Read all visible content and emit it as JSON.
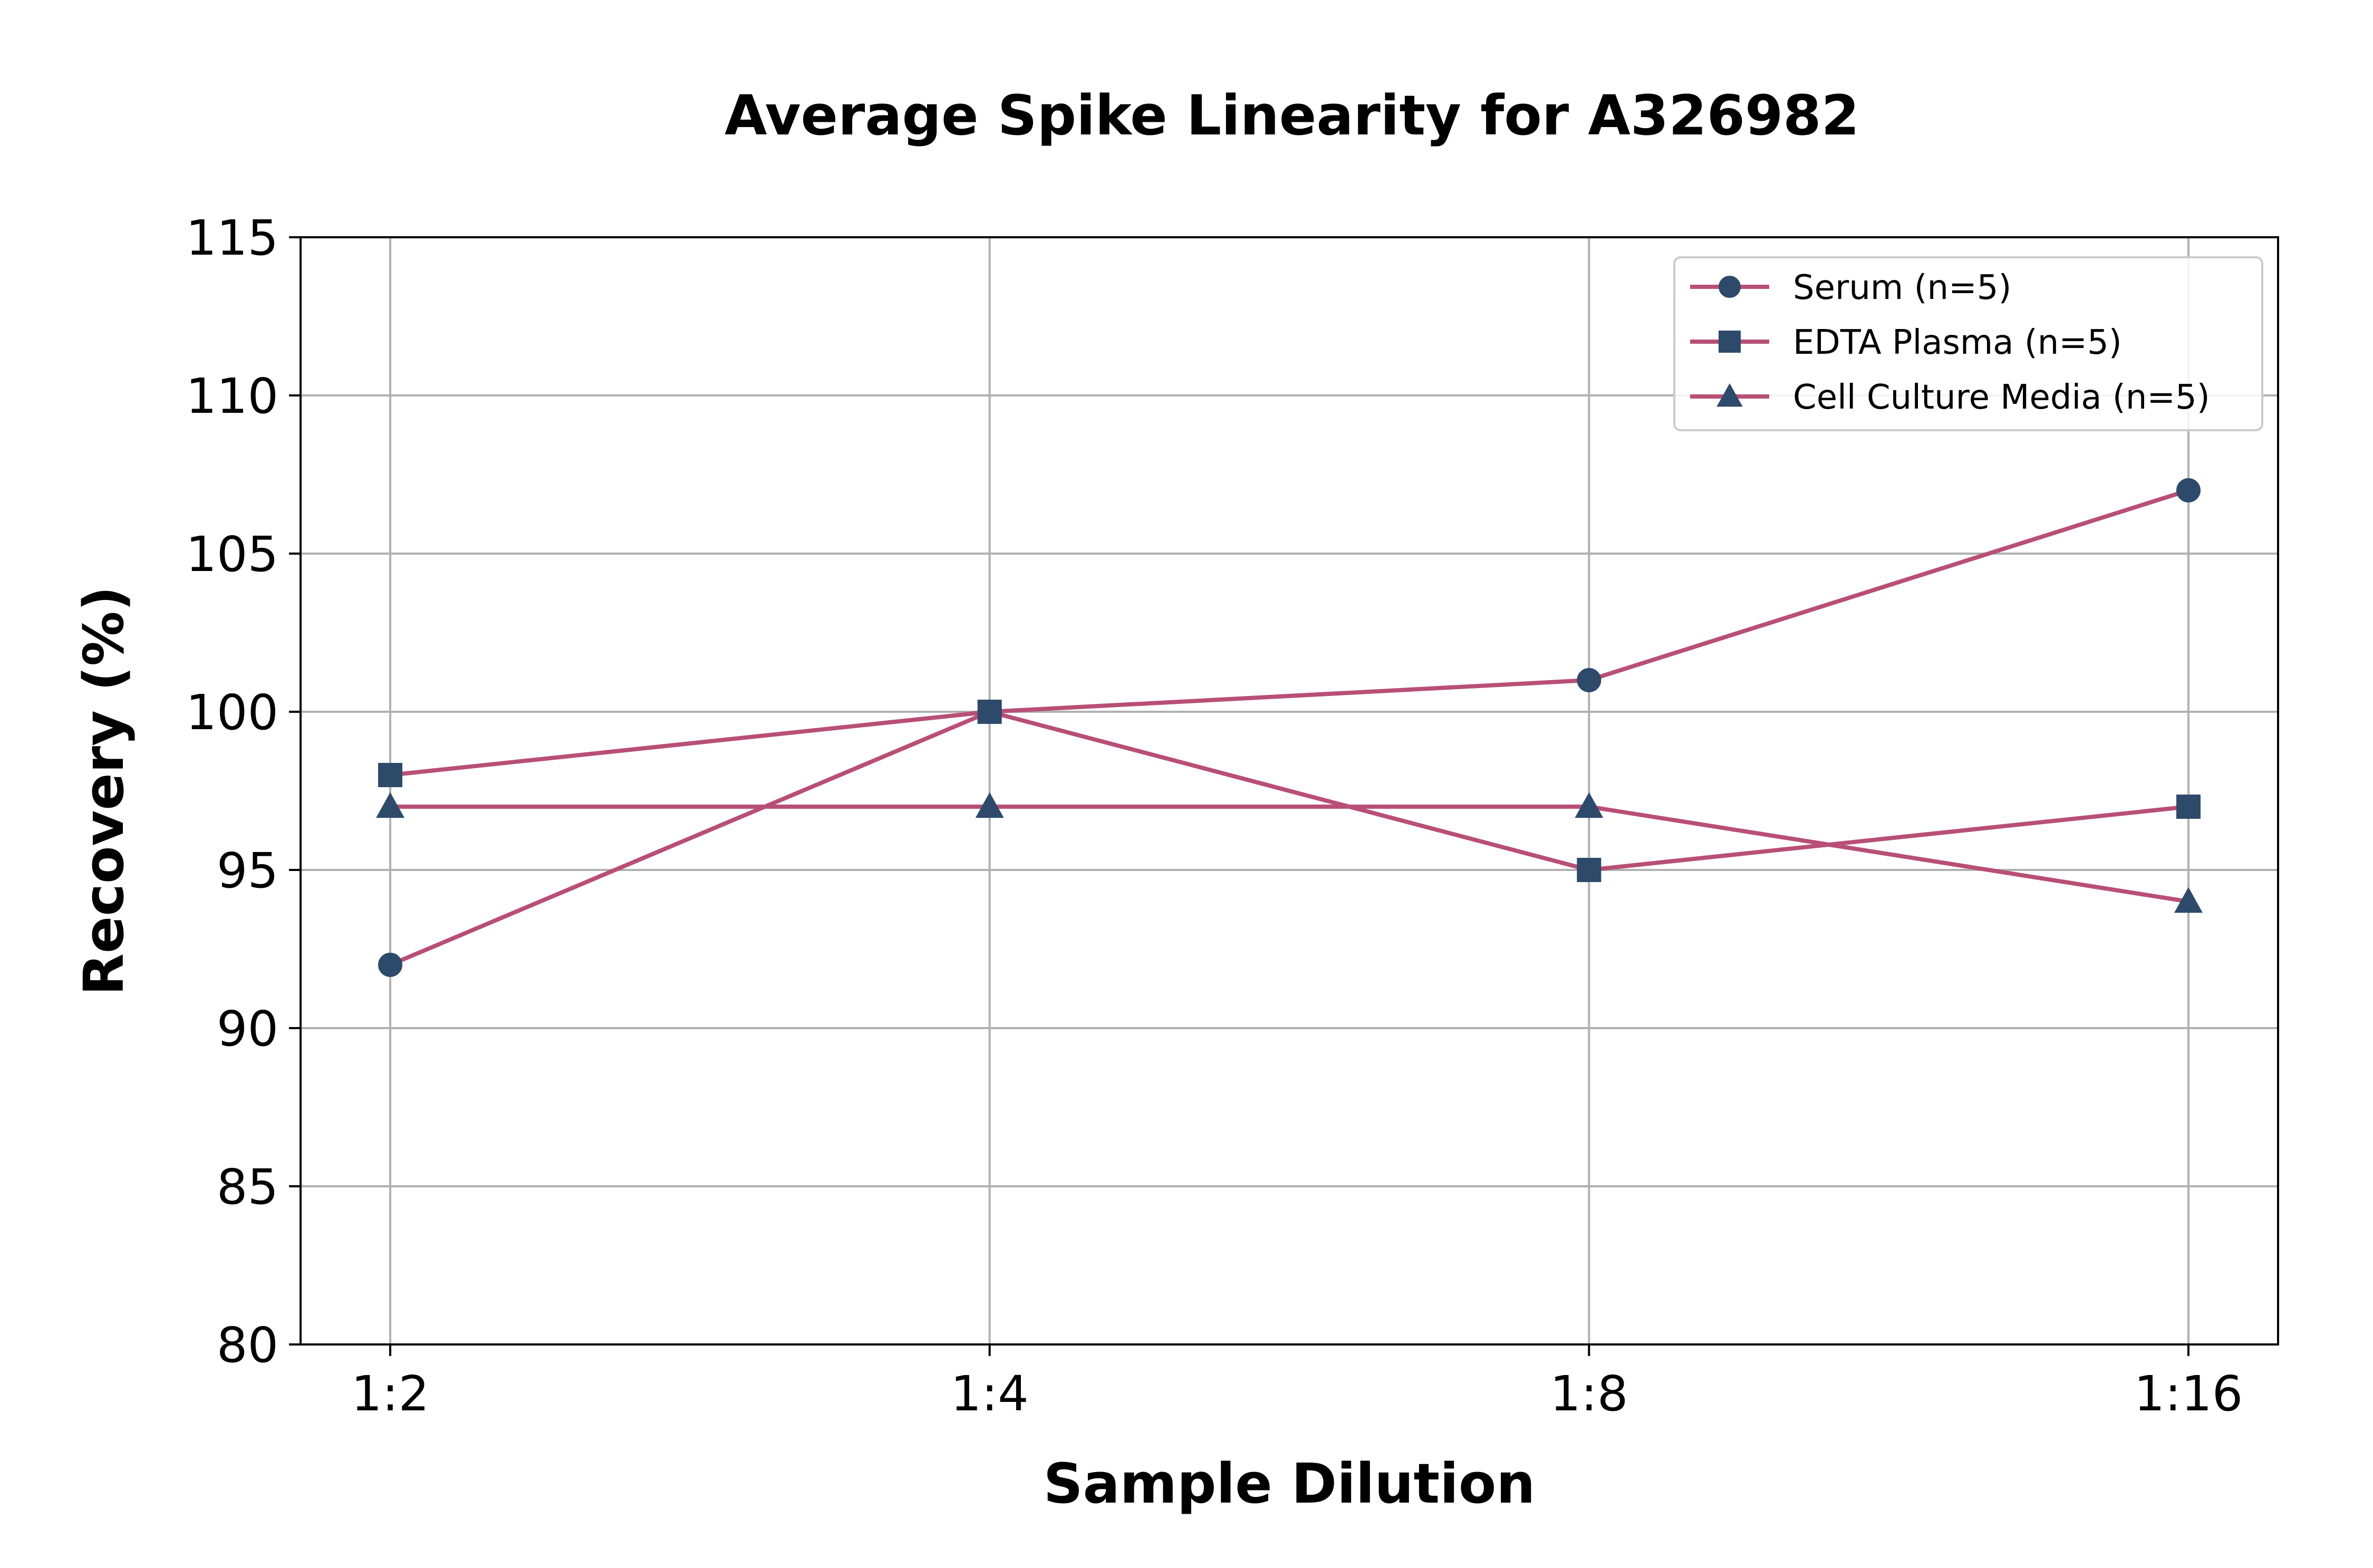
{
  "chart_data": {
    "type": "line",
    "title": "Average Spike Linearity for A326982",
    "xlabel": "Sample Dilution",
    "ylabel": "Recovery (%)",
    "categories": [
      "1:2",
      "1:4",
      "1:8",
      "1:16"
    ],
    "ylim": [
      80,
      115
    ],
    "yticks": [
      80,
      85,
      90,
      95,
      100,
      105,
      110,
      115
    ],
    "grid": true,
    "legend_position": "top-right",
    "line_color": "#b84f76",
    "marker_color": "#2d4a6b",
    "series": [
      {
        "name": "Serum (n=5)",
        "marker": "circle",
        "values": [
          92,
          100,
          101,
          107
        ]
      },
      {
        "name": "EDTA Plasma (n=5)",
        "marker": "square",
        "values": [
          98,
          100,
          95,
          97
        ]
      },
      {
        "name": "Cell Culture Media (n=5)",
        "marker": "triangle",
        "values": [
          97,
          97,
          97,
          94
        ]
      }
    ]
  }
}
